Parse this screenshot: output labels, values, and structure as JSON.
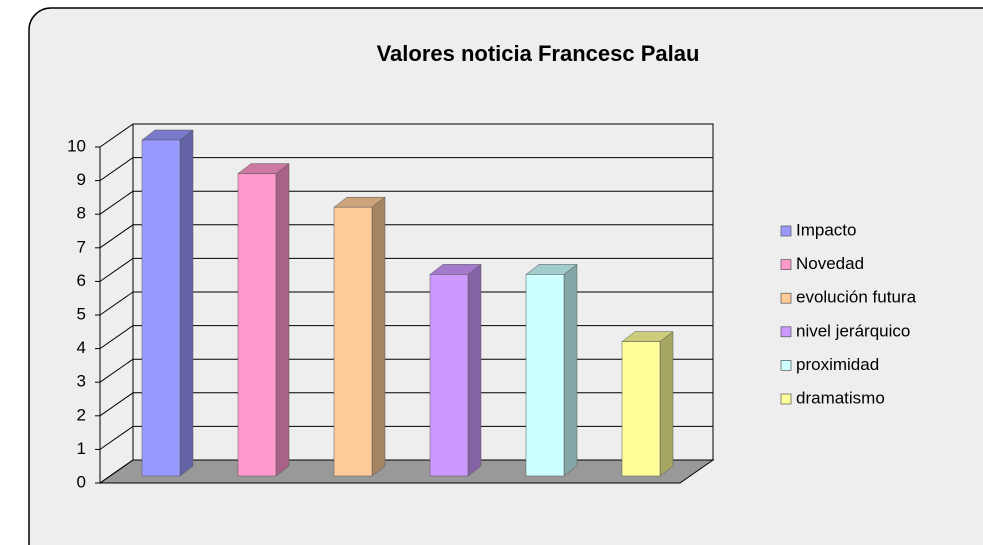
{
  "chart_data": {
    "type": "bar3d",
    "title": "Valores noticia Francesc Palau",
    "series": [
      {
        "name": "Impacto",
        "color": "#9999ff",
        "values": [
          10
        ]
      },
      {
        "name": "Novedad",
        "color": "#ff99cc",
        "values": [
          9
        ]
      },
      {
        "name": "evolución futura",
        "color": "#ffcc99",
        "values": [
          8
        ]
      },
      {
        "name": "nivel jerárquico",
        "color": "#cc99ff",
        "values": [
          6
        ]
      },
      {
        "name": "proximidad",
        "color": "#ccffff",
        "values": [
          6
        ]
      },
      {
        "name": "dramatismo",
        "color": "#ffff99",
        "values": [
          4
        ]
      }
    ],
    "ylim": [
      0,
      10
    ],
    "yticks": [
      0,
      1,
      2,
      3,
      4,
      5,
      6,
      7,
      8,
      9,
      10
    ],
    "grid": true,
    "legend": "right"
  }
}
